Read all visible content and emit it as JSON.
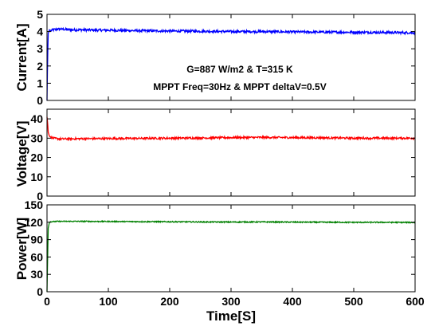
{
  "chart_data": [
    {
      "type": "line",
      "ylabel": "Current[A]",
      "ylim": [
        0,
        5
      ],
      "yticks": [
        0,
        1,
        2,
        3,
        4,
        5
      ],
      "xlim": [
        0,
        600
      ],
      "xticks": [
        0,
        100,
        200,
        300,
        400,
        500,
        600
      ],
      "show_xticklabels": false,
      "color": "#0000ff",
      "annotations": [
        "G=887 W/m2 & T=315 K",
        "MPPT Freq=30Hz & MPPT deltaV=0.5V"
      ],
      "series": [
        {
          "x": [
            0,
            1,
            2,
            4,
            6,
            10,
            20,
            40,
            60,
            80,
            100,
            150,
            200,
            250,
            300,
            350,
            400,
            450,
            500,
            550,
            600
          ],
          "values": [
            0,
            2.5,
            3.9,
            4.1,
            4.05,
            4.1,
            4.15,
            4.1,
            4.1,
            4.08,
            4.08,
            4.05,
            4.03,
            4.02,
            4.0,
            4.0,
            3.98,
            3.97,
            3.96,
            3.95,
            3.93
          ],
          "noise": 0.07
        }
      ]
    },
    {
      "type": "line",
      "ylabel": "Voltage[V]",
      "ylim": [
        0,
        45
      ],
      "yticks": [
        0,
        10,
        20,
        30,
        40
      ],
      "xlim": [
        0,
        600
      ],
      "xticks": [
        0,
        100,
        200,
        300,
        400,
        500,
        600
      ],
      "show_xticklabels": false,
      "color": "#ff0000",
      "series": [
        {
          "x": [
            0,
            1,
            2,
            4,
            6,
            10,
            20,
            50,
            100,
            150,
            200,
            250,
            300,
            350,
            400,
            450,
            500,
            550,
            600
          ],
          "values": [
            41,
            38,
            33,
            31,
            30.5,
            30,
            29.6,
            29.7,
            29.8,
            29.9,
            30,
            30.1,
            30.3,
            30.4,
            30.3,
            30.2,
            30,
            30,
            30
          ],
          "noise": 0.5
        }
      ]
    },
    {
      "type": "line",
      "ylabel": "Power[W]",
      "ylim": [
        0,
        150
      ],
      "yticks": [
        0,
        30,
        60,
        90,
        120,
        150
      ],
      "xlim": [
        0,
        600
      ],
      "xticks": [
        0,
        100,
        200,
        300,
        400,
        500,
        600
      ],
      "show_xticklabels": true,
      "xlabel": "Time[S]",
      "color": "#008000",
      "series": [
        {
          "x": [
            0,
            1,
            2,
            4,
            6,
            10,
            20,
            50,
            100,
            150,
            200,
            250,
            300,
            350,
            400,
            450,
            500,
            550,
            600
          ],
          "values": [
            0,
            60,
            110,
            120,
            121,
            121,
            121.5,
            121.5,
            121.3,
            121,
            120.8,
            120.5,
            120.3,
            120.5,
            120.2,
            120,
            119.8,
            119.8,
            119.6
          ],
          "noise": 0.9
        }
      ]
    }
  ]
}
